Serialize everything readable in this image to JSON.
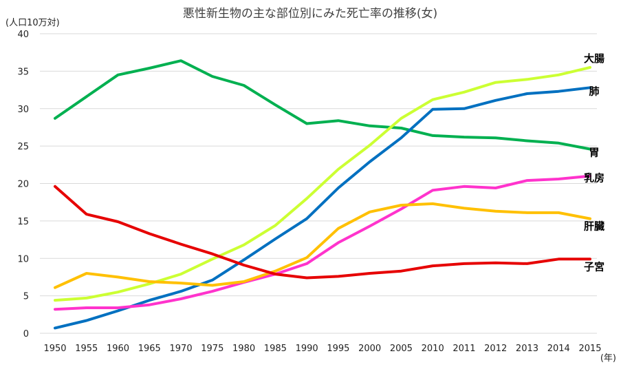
{
  "chart_data": {
    "type": "line",
    "title": "悪性新生物の主な部位別にみた死亡率の推移(女)",
    "ylabel": "(人口10万対)",
    "xlabel": "(年)",
    "ylim": [
      0,
      40
    ],
    "yticks": [
      0,
      5,
      10,
      15,
      20,
      25,
      30,
      35,
      40
    ],
    "grid": true,
    "legend": "end-labels",
    "categories": [
      "1950",
      "1955",
      "1960",
      "1965",
      "1970",
      "1975",
      "1980",
      "1985",
      "1990",
      "1995",
      "2000",
      "2005",
      "2010",
      "2011",
      "2012",
      "2013",
      "2014",
      "2015"
    ],
    "series": [
      {
        "name": "胃",
        "color": "#00b050",
        "values": [
          28.7,
          31.6,
          34.5,
          35.4,
          36.4,
          34.3,
          33.1,
          30.5,
          28.0,
          28.4,
          27.7,
          27.4,
          26.4,
          26.2,
          26.1,
          25.7,
          25.4,
          24.6
        ]
      },
      {
        "name": "大腸",
        "color": "#ccff33",
        "values": [
          4.4,
          4.7,
          5.5,
          6.6,
          7.9,
          9.9,
          11.8,
          14.4,
          18.0,
          21.9,
          25.1,
          28.7,
          31.2,
          32.2,
          33.5,
          33.9,
          34.5,
          35.5
        ]
      },
      {
        "name": "肺",
        "color": "#0070c0",
        "values": [
          0.7,
          1.7,
          3.0,
          4.4,
          5.6,
          7.1,
          9.8,
          12.6,
          15.3,
          19.4,
          22.9,
          26.1,
          29.9,
          30.0,
          31.1,
          32.0,
          32.3,
          32.8
        ]
      },
      {
        "name": "乳房",
        "color": "#ff33cc",
        "values": [
          3.2,
          3.4,
          3.4,
          3.8,
          4.6,
          5.6,
          6.8,
          7.9,
          9.3,
          12.1,
          14.3,
          16.6,
          19.1,
          19.6,
          19.4,
          20.4,
          20.6,
          21.0
        ]
      },
      {
        "name": "肝臓",
        "color": "#ffc000",
        "values": [
          6.1,
          8.0,
          7.5,
          6.9,
          6.7,
          6.4,
          6.9,
          8.3,
          10.1,
          14.0,
          16.2,
          17.1,
          17.3,
          16.7,
          16.3,
          16.1,
          16.1,
          15.3
        ]
      },
      {
        "name": "子宮",
        "color": "#e60000",
        "values": [
          19.6,
          15.9,
          14.9,
          13.3,
          11.9,
          10.6,
          9.1,
          7.9,
          7.4,
          7.6,
          8.0,
          8.3,
          9.0,
          9.3,
          9.4,
          9.3,
          9.9,
          9.9
        ]
      }
    ]
  }
}
